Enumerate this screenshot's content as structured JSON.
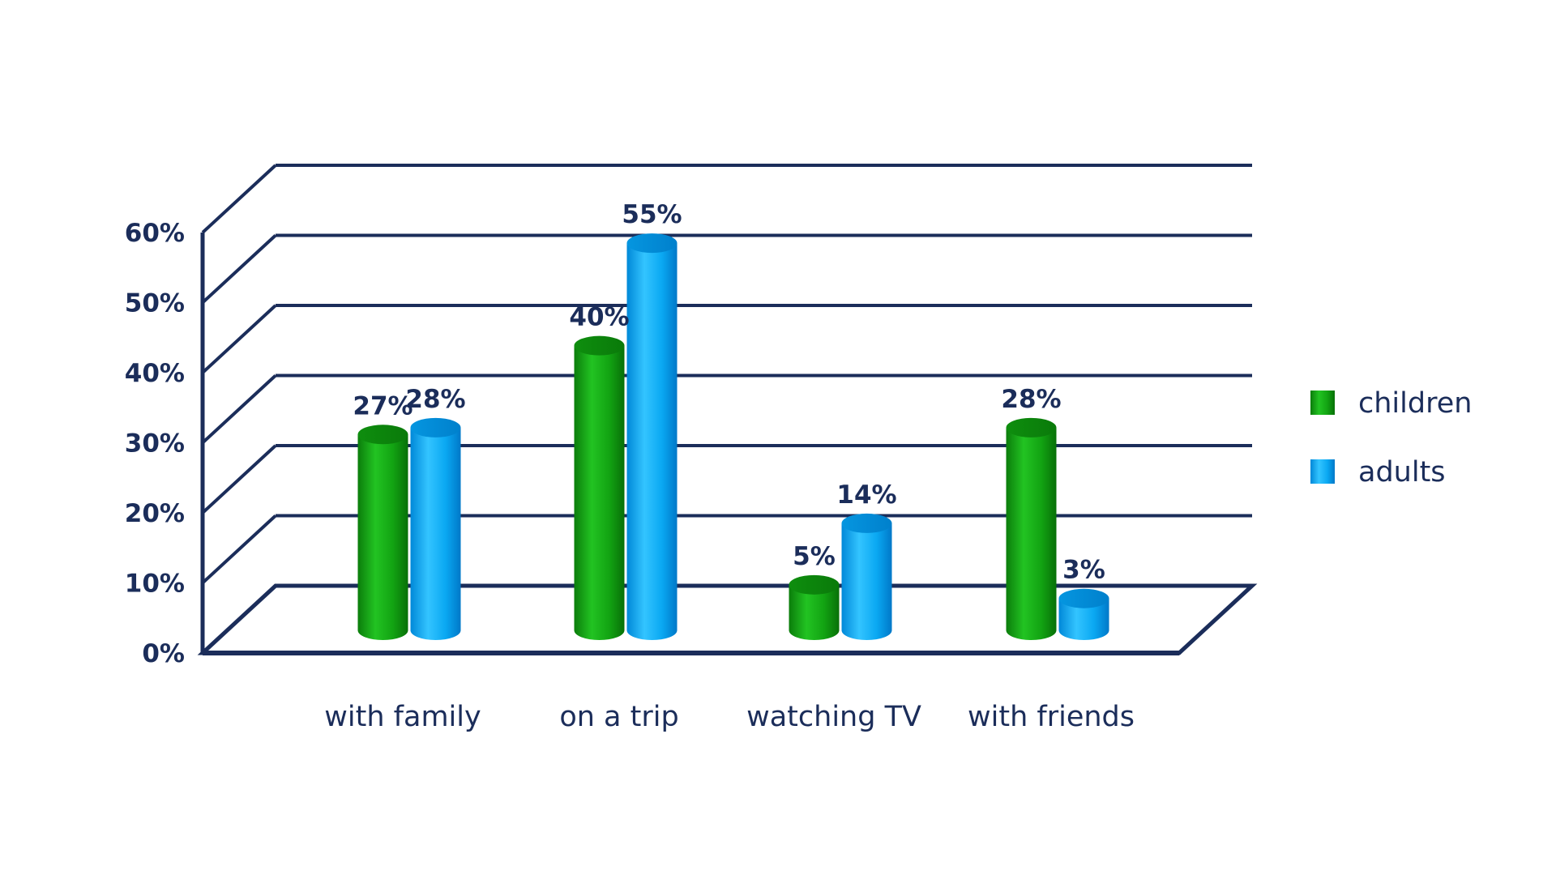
{
  "chart_data": {
    "type": "bar",
    "categories": [
      "with family",
      "on a trip",
      "watching TV",
      "with friends"
    ],
    "series": [
      {
        "name": "children",
        "values": [
          27,
          40,
          5,
          28
        ],
        "labels": [
          "27%",
          "40%",
          "5%",
          "28%"
        ]
      },
      {
        "name": "adults",
        "values": [
          28,
          55,
          14,
          3
        ],
        "labels": [
          "28%",
          "55%",
          "14%",
          "3%"
        ]
      }
    ],
    "yticks": [
      "0%",
      "10%",
      "20%",
      "30%",
      "40%",
      "50%",
      "60%"
    ],
    "ylim": [
      0,
      60
    ],
    "legend_position": "right",
    "grid": true,
    "colors": {
      "children": "#12a312",
      "adults": "#0aa8f2",
      "frame": "#1b2d5a"
    }
  }
}
